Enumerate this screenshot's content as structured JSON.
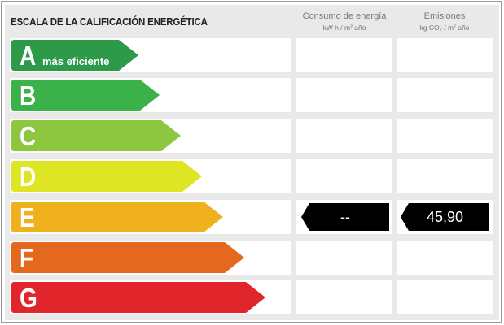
{
  "title": "ESCALA DE LA CALIFICACIÓN ENERGÉTICA",
  "columns": [
    {
      "label": "Consumo de energía",
      "unit": "kW h / m² año"
    },
    {
      "label": "Emisiones",
      "unit": "kg CO₂ / m² año"
    }
  ],
  "ratings": [
    {
      "letter": "A",
      "label": "más eficiente",
      "color": "#2c9a48"
    },
    {
      "letter": "B",
      "label": "",
      "color": "#3bb14a"
    },
    {
      "letter": "C",
      "label": "",
      "color": "#8dc63f"
    },
    {
      "letter": "D",
      "label": "",
      "color": "#dde524"
    },
    {
      "letter": "E",
      "label": "",
      "color": "#f0b11f"
    },
    {
      "letter": "F",
      "label": "",
      "color": "#e4691f"
    },
    {
      "letter": "G",
      "label": "",
      "color": "#e1262b"
    }
  ],
  "current": {
    "rating": "E",
    "consumo": "--",
    "emisiones": "45,90"
  }
}
